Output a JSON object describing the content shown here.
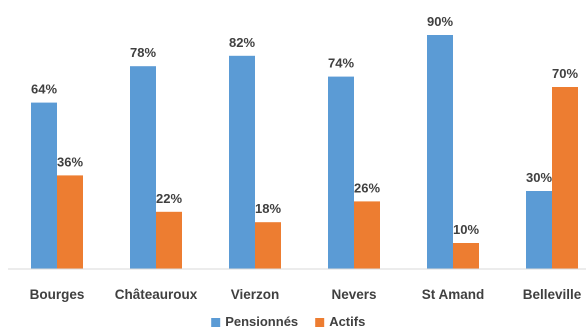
{
  "chart_data": {
    "type": "bar",
    "categories": [
      "Bourges",
      "Châteauroux",
      "Vierzon",
      "Nevers",
      "St Amand",
      "Belleville"
    ],
    "series": [
      {
        "name": "Pensionnés",
        "values": [
          64,
          78,
          82,
          74,
          90,
          30
        ],
        "labels": [
          "64%",
          "78%",
          "82%",
          "74%",
          "90%",
          "30%"
        ],
        "color": "#5B9BD5"
      },
      {
        "name": "Actifs",
        "values": [
          36,
          22,
          18,
          26,
          10,
          70
        ],
        "labels": [
          "36%",
          "22%",
          "18%",
          "26%",
          "10%",
          "70%"
        ],
        "color": "#ED7D31"
      }
    ],
    "ylim": [
      0,
      100
    ],
    "grid": false,
    "legend": "bottom-center",
    "axis_color": "#d9d9d9",
    "label_color": "#404040"
  }
}
